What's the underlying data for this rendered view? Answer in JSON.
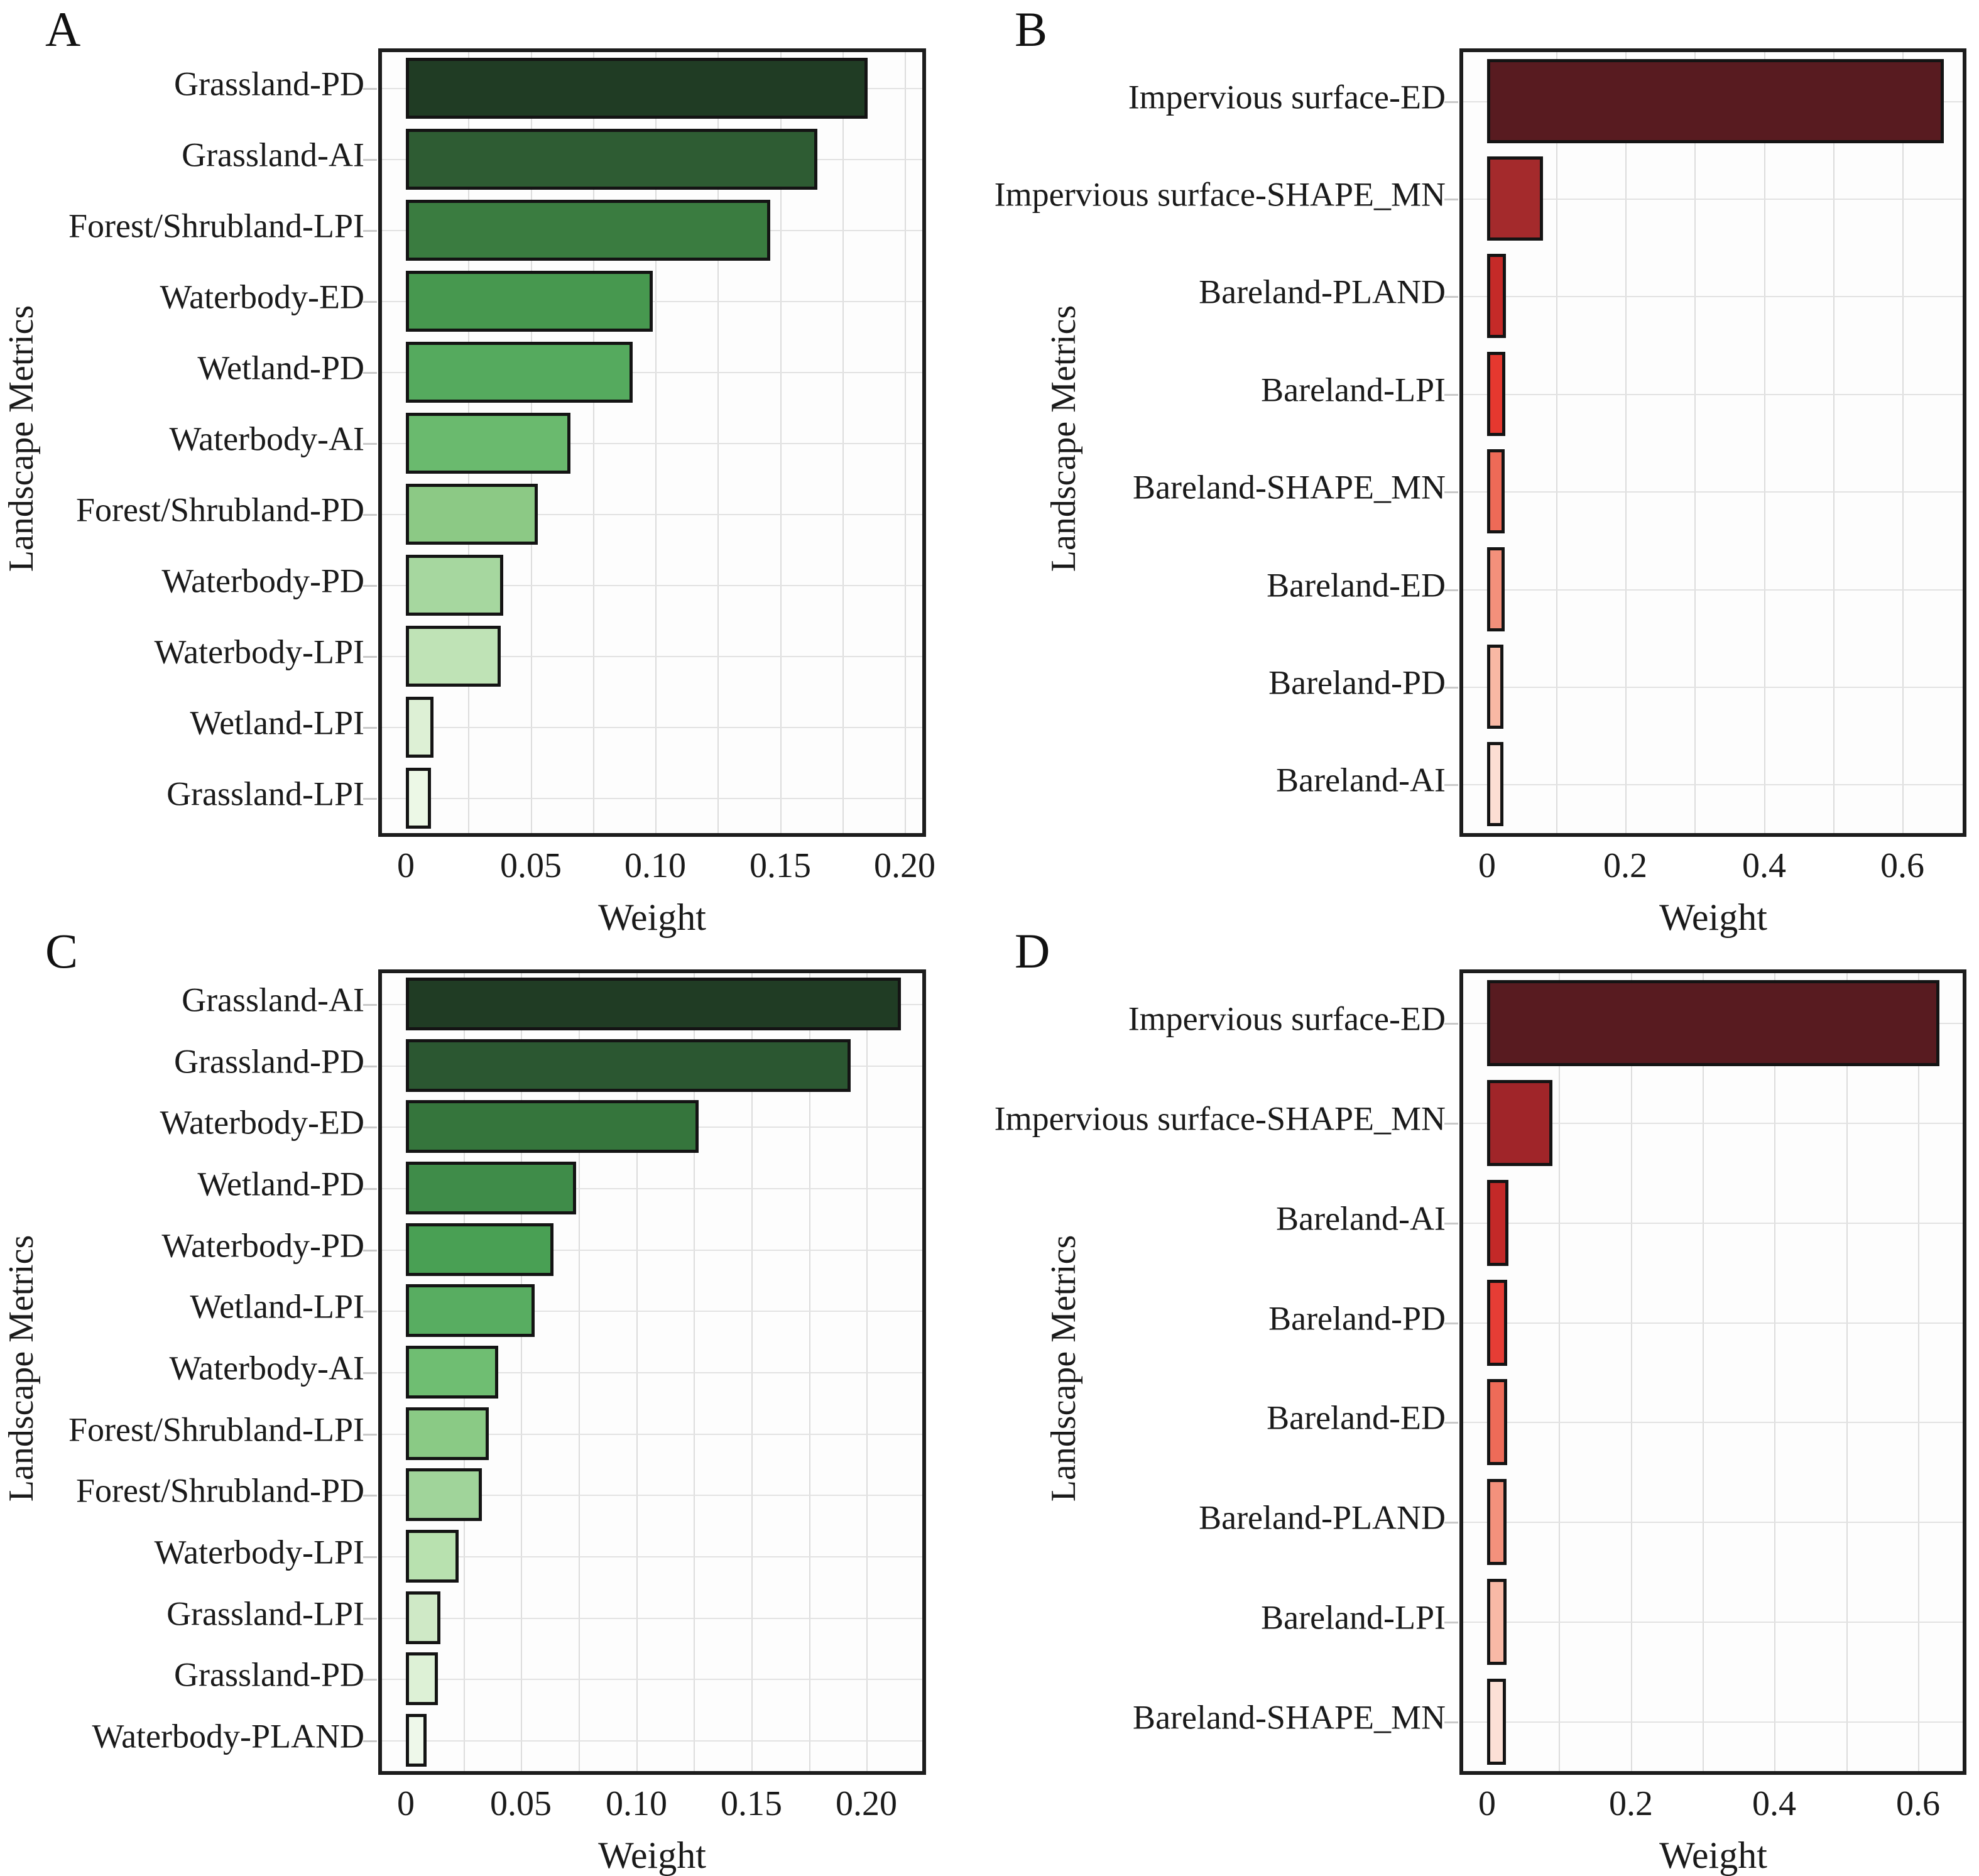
{
  "figure": {
    "background": "#ffffff",
    "grid_color": "#dcdcdc",
    "bar_edge_color": "#141414",
    "axis_color": "#1c1c1c"
  },
  "chart_data": [
    {
      "panel": "A",
      "type": "bar",
      "orientation": "horizontal",
      "xlabel": "Weight",
      "ylabel": "Landscape Metrics",
      "categories": [
        "Grassland-PD",
        "Grassland-AI",
        "Forest/Shrubland-LPI",
        "Waterbody-ED",
        "Wetland-PD",
        "Waterbody-AI",
        "Forest/Shrubland-PD",
        "Waterbody-PD",
        "Waterbody-LPI",
        "Wetland-LPI",
        "Grassland-LPI"
      ],
      "values": [
        0.185,
        0.165,
        0.146,
        0.099,
        0.091,
        0.066,
        0.053,
        0.039,
        0.038,
        0.011,
        0.01
      ],
      "bar_colors": [
        "#203c24",
        "#2e5c33",
        "#3a7c40",
        "#47984f",
        "#55aa5e",
        "#6aba6e",
        "#8cc985",
        "#a6d79f",
        "#bfe3b6",
        "#ddf0d5",
        "#ecf8e6"
      ],
      "xticks": [
        0,
        0.05,
        0.1,
        0.15,
        0.2
      ],
      "xtick_labels": [
        "0",
        "0.05",
        "0.10",
        "0.15",
        "0.20"
      ],
      "xlim": [
        0,
        0.205
      ],
      "grid_step": 0.025,
      "grid": "on",
      "legend": "none"
    },
    {
      "panel": "B",
      "type": "bar",
      "orientation": "horizontal",
      "xlabel": "Weight",
      "ylabel": "Landscape Metrics",
      "categories": [
        "Impervious surface-ED",
        "Impervious surface-SHAPE_MN",
        "Bareland-PLAND",
        "Bareland-LPI",
        "Bareland-SHAPE_MN",
        "Bareland-ED",
        "Bareland-PD",
        "Bareland-AI"
      ],
      "values": [
        0.66,
        0.081,
        0.027,
        0.026,
        0.025,
        0.025,
        0.024,
        0.024
      ],
      "bar_colors": [
        "#581b20",
        "#a42a2c",
        "#c52a28",
        "#e5382f",
        "#ee6a57",
        "#f3907b",
        "#f8b8a4",
        "#fcded3"
      ],
      "xticks": [
        0,
        0.2,
        0.4,
        0.6
      ],
      "xtick_labels": [
        "0",
        "0.2",
        "0.4",
        "0.6"
      ],
      "xlim": [
        0,
        0.68
      ],
      "grid_step": 0.1,
      "grid": "on",
      "legend": "none"
    },
    {
      "panel": "C",
      "type": "bar",
      "orientation": "horizontal",
      "xlabel": "Weight",
      "ylabel": "Landscape Metrics",
      "categories": [
        "Grassland-AI",
        "Grassland-PD",
        "Waterbody-ED",
        "Wetland-PD",
        "Waterbody-PD",
        "Wetland-LPI",
        "Waterbody-AI",
        "Forest/Shrubland-LPI",
        "Forest/Shrubland-PD",
        "Waterbody-LPI",
        "Grassland-LPI",
        "Grassland-PD",
        "Waterbody-PLAND"
      ],
      "values": [
        0.215,
        0.193,
        0.127,
        0.074,
        0.064,
        0.056,
        0.04,
        0.036,
        0.033,
        0.023,
        0.015,
        0.014,
        0.009
      ],
      "bar_colors": [
        "#203c24",
        "#2b5731",
        "#35753c",
        "#3f8c49",
        "#49a054",
        "#58ad61",
        "#6fbe72",
        "#8aca85",
        "#a0d49a",
        "#b8e1af",
        "#cfe9c6",
        "#ddf1d6",
        "#eef8ea"
      ],
      "xticks": [
        0,
        0.05,
        0.1,
        0.15,
        0.2
      ],
      "xtick_labels": [
        "0",
        "0.05",
        "0.10",
        "0.15",
        "0.20"
      ],
      "xlim": [
        0,
        0.222
      ],
      "grid_step": 0.025,
      "grid": "on",
      "legend": "none"
    },
    {
      "panel": "D",
      "type": "bar",
      "orientation": "horizontal",
      "xlabel": "Weight",
      "ylabel": "Landscape Metrics",
      "categories": [
        "Impervious surface-ED",
        "Impervious surface-SHAPE_MN",
        "Bareland-AI",
        "Bareland-PD",
        "Bareland-ED",
        "Bareland-PLAND",
        "Bareland-LPI",
        "Bareland-SHAPE_MN"
      ],
      "values": [
        0.63,
        0.091,
        0.03,
        0.028,
        0.028,
        0.027,
        0.027,
        0.026
      ],
      "bar_colors": [
        "#581b20",
        "#a02529",
        "#c32928",
        "#e63d35",
        "#ee6b58",
        "#f3917c",
        "#f8b9a6",
        "#fce0d6"
      ],
      "xticks": [
        0,
        0.2,
        0.4,
        0.6
      ],
      "xtick_labels": [
        "0",
        "0.2",
        "0.4",
        "0.6"
      ],
      "xlim": [
        0,
        0.655
      ],
      "grid_step": 0.1,
      "grid": "on",
      "legend": "none"
    }
  ]
}
